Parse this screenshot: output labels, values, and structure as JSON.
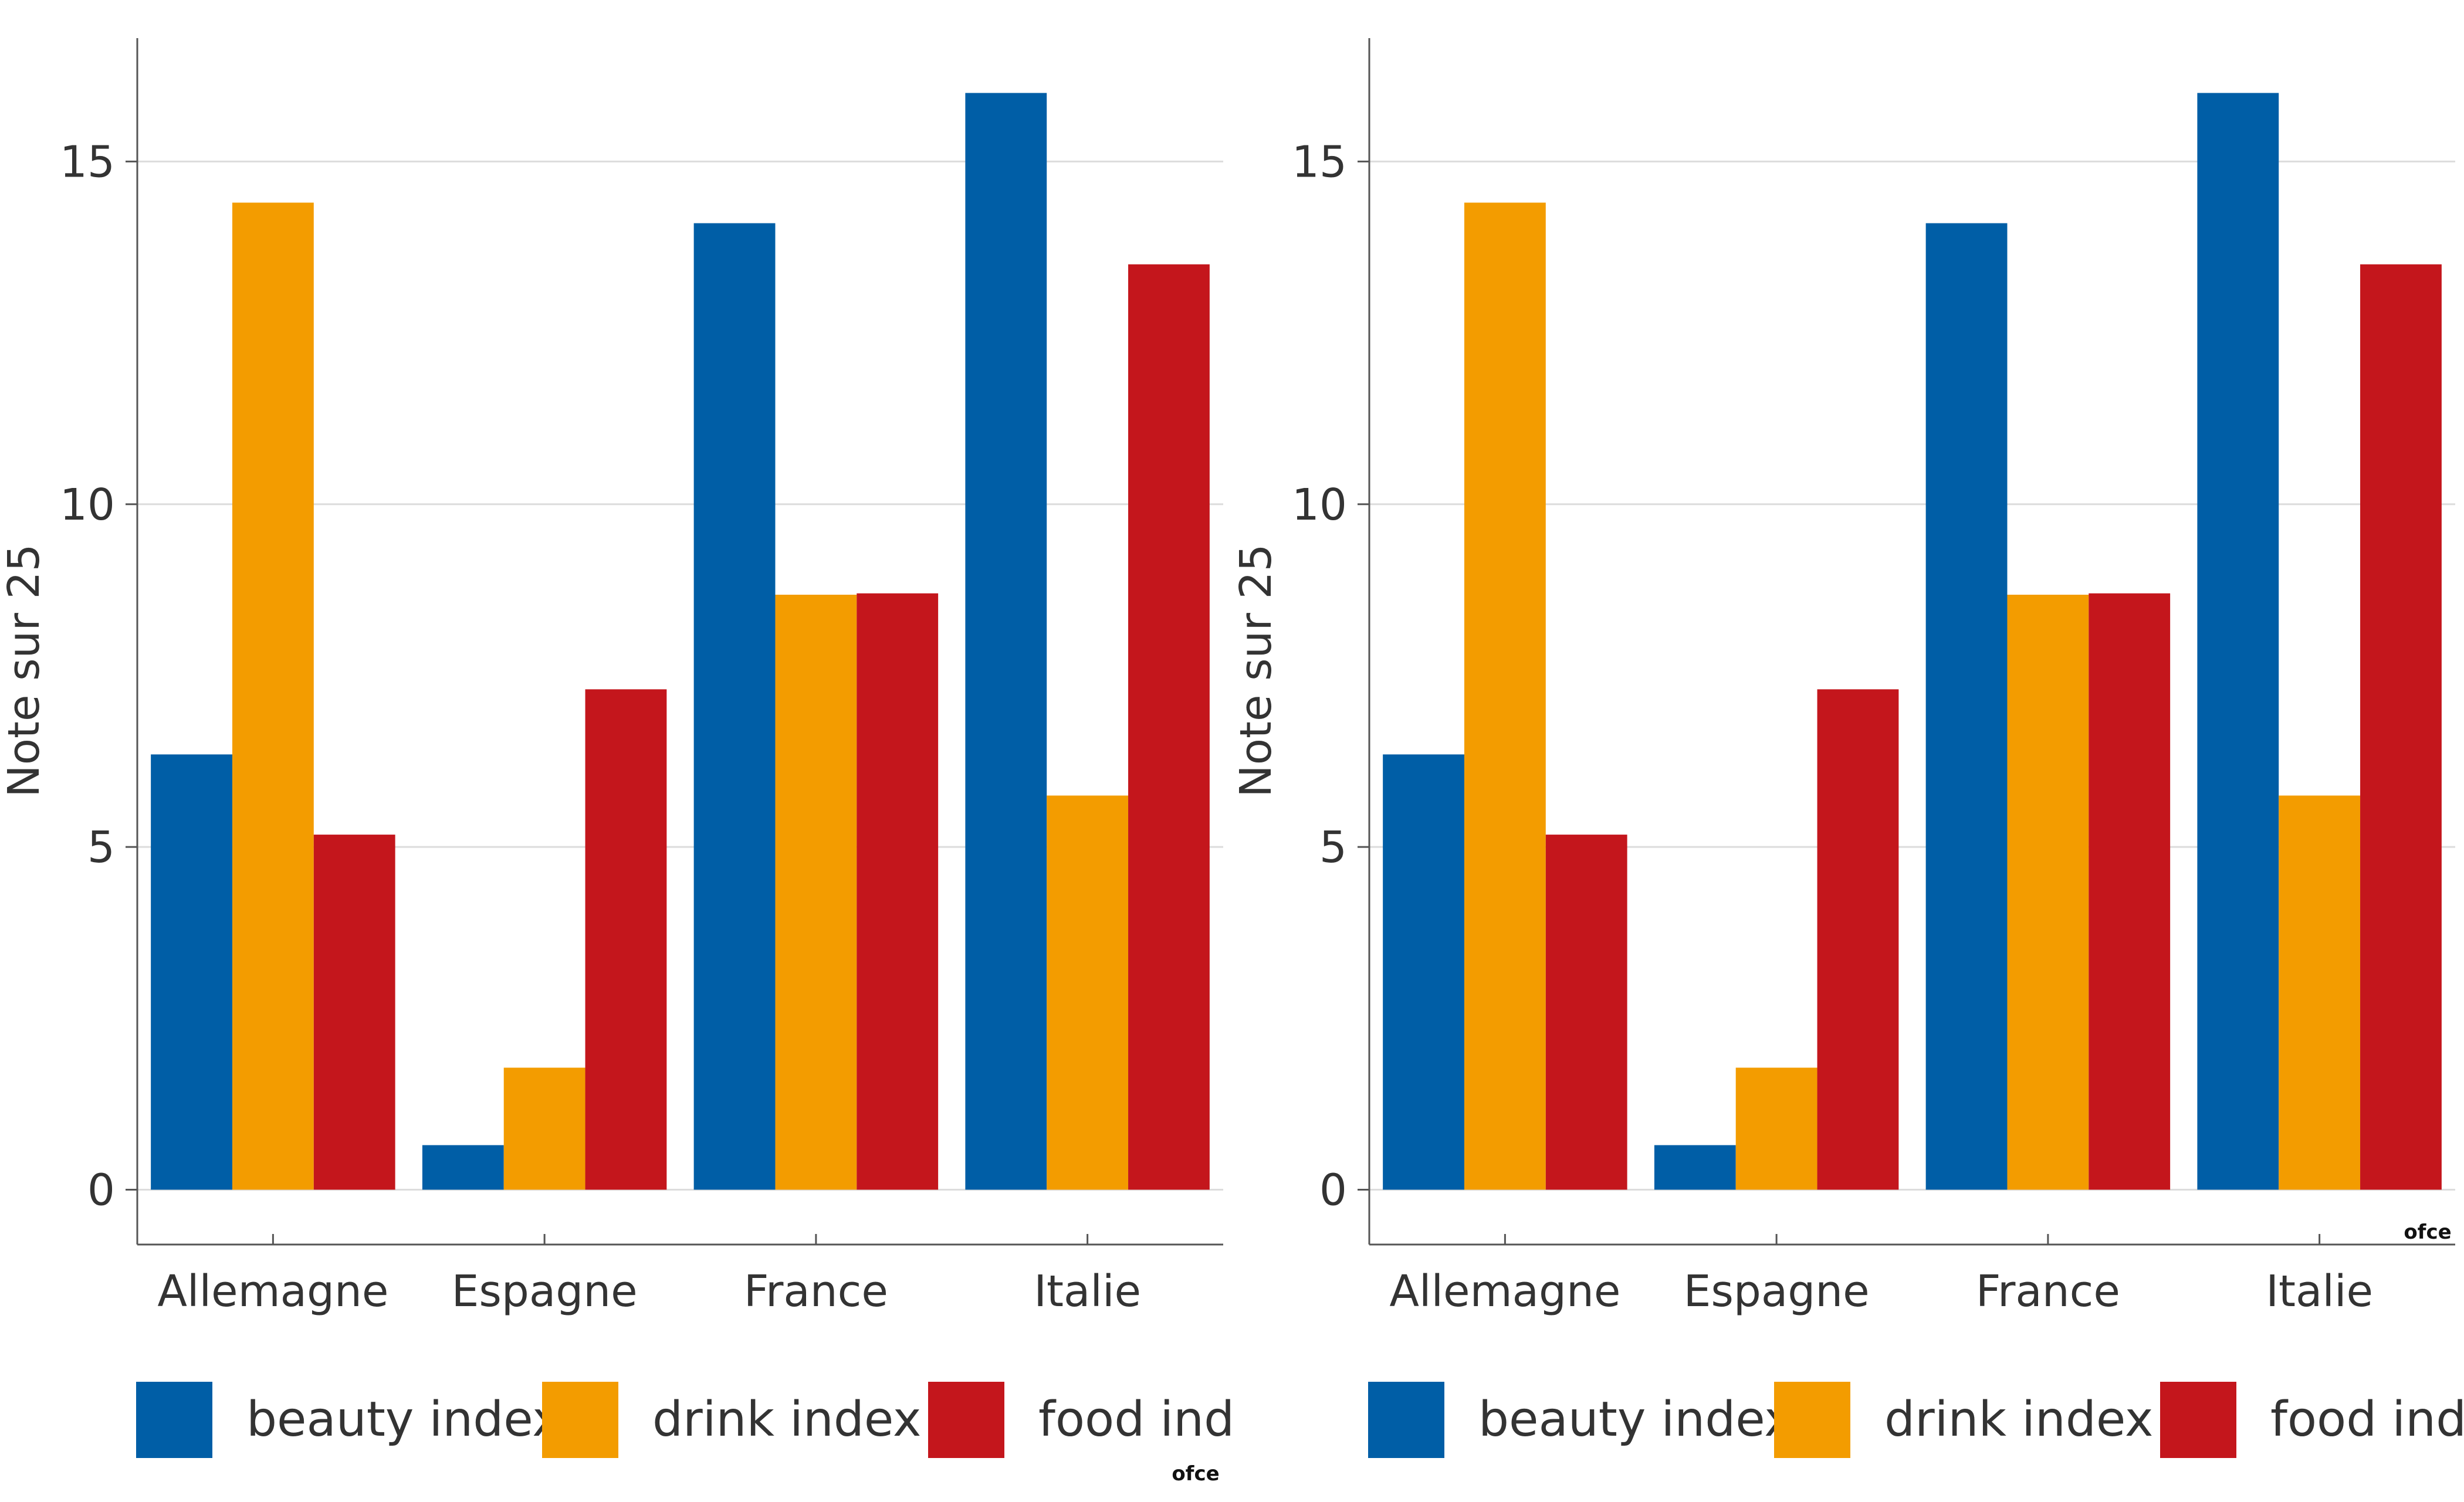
{
  "chart_data": [
    {
      "type": "bar",
      "categories": [
        "Allemagne",
        "Espagne",
        "France",
        "Italie"
      ],
      "series": [
        {
          "name": "beauty index",
          "values": [
            6.35,
            0.65,
            14.1,
            16.0
          ]
        },
        {
          "name": "drink index",
          "values": [
            14.4,
            1.78,
            8.68,
            5.75
          ]
        },
        {
          "name": "food index",
          "values": [
            5.18,
            7.3,
            8.7,
            13.5
          ]
        }
      ],
      "legend_texts": [
        "beauty index",
        "drink index",
        "food inde"
      ],
      "ylabel": "Note sur 25",
      "xlabel": "",
      "ylim": [
        -0.8,
        16.8
      ],
      "yticks": [
        0,
        5,
        10,
        15
      ],
      "grid": "horizontal",
      "legend_position": "bottom",
      "colors": [
        "#005ea6",
        "#f39c00",
        "#c4161c"
      ],
      "logo": "ofce"
    },
    {
      "type": "bar",
      "categories": [
        "Allemagne",
        "Espagne",
        "France",
        "Italie"
      ],
      "series": [
        {
          "name": "beauty index",
          "values": [
            6.35,
            0.65,
            14.1,
            16.0
          ]
        },
        {
          "name": "drink index",
          "values": [
            14.4,
            1.78,
            8.68,
            5.75
          ]
        },
        {
          "name": "food index",
          "values": [
            5.18,
            7.3,
            8.7,
            13.5
          ]
        }
      ],
      "legend_texts": [
        "beauty index",
        "drink index",
        "food inde"
      ],
      "ylabel": "Note sur 25",
      "xlabel": "",
      "ylim": [
        -0.8,
        16.8
      ],
      "yticks": [
        0,
        5,
        10,
        15
      ],
      "grid": "horizontal",
      "legend_position": "bottom",
      "colors": [
        "#005ea6",
        "#f39c00",
        "#c4161c"
      ],
      "logo": "ofce"
    }
  ]
}
